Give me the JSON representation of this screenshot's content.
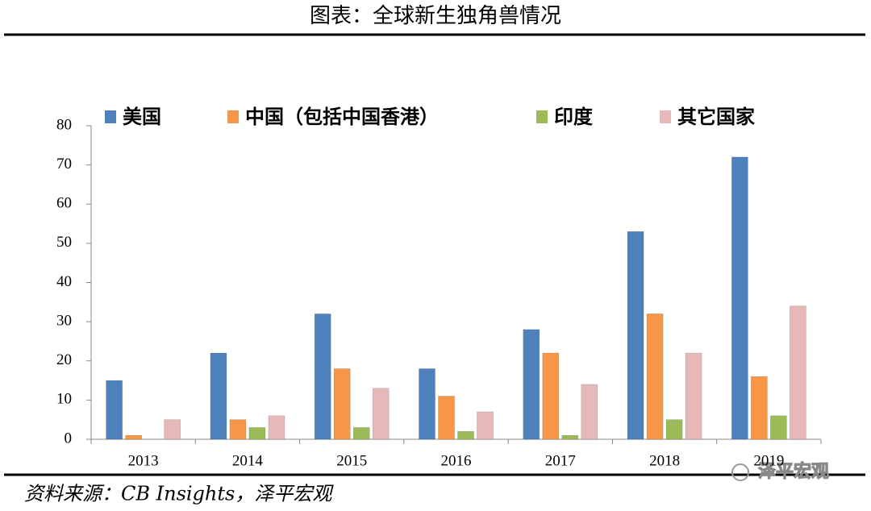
{
  "chart_data": {
    "type": "bar",
    "title": "图表：全球新生独角兽情况",
    "source": "资料来源：CB Insights，泽平宏观",
    "watermark": "泽平宏观",
    "categories": [
      "2013",
      "2014",
      "2015",
      "2016",
      "2017",
      "2018",
      "2019"
    ],
    "series": [
      {
        "name": "美国",
        "color": "#4f81bd",
        "values": [
          15,
          22,
          32,
          18,
          28,
          53,
          72
        ]
      },
      {
        "name": "中国（包括中国香港）",
        "color": "#f79646",
        "values": [
          1,
          5,
          18,
          11,
          22,
          32,
          16
        ]
      },
      {
        "name": "印度",
        "color": "#9bbb59",
        "values": [
          0,
          3,
          3,
          2,
          1,
          5,
          6
        ]
      },
      {
        "name": "其它国家",
        "color": "#e6b9b8",
        "values": [
          5,
          6,
          13,
          7,
          14,
          22,
          34
        ]
      }
    ],
    "ylim": [
      0,
      80
    ],
    "yticks": [
      0,
      10,
      20,
      30,
      40,
      50,
      60,
      70,
      80
    ],
    "grid": false
  }
}
